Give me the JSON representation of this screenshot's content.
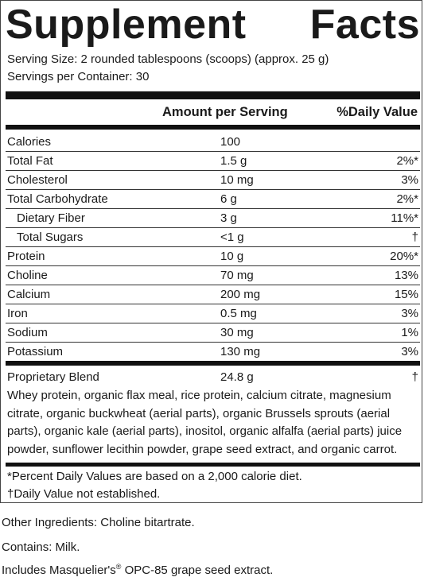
{
  "panel": {
    "title_word1": "Supplement",
    "title_word2": "Facts",
    "serving_size": "Serving Size: 2 rounded tablespoons (scoops) (approx. 25 g)",
    "servings_per_container": "Servings per Container: 30",
    "header_amount": "Amount per Serving",
    "header_dv": "%Daily Value",
    "nutrients": [
      {
        "name": "Calories",
        "amount": "100",
        "dv": "",
        "indent": false
      },
      {
        "name": "Total Fat",
        "amount": "1.5 g",
        "dv": "2%*",
        "indent": false
      },
      {
        "name": "Cholesterol",
        "amount": "10 mg",
        "dv": "3%",
        "indent": false
      },
      {
        "name": "Total Carbohydrate",
        "amount": "6 g",
        "dv": "2%*",
        "indent": false
      },
      {
        "name": "Dietary Fiber",
        "amount": "3 g",
        "dv": "11%*",
        "indent": true
      },
      {
        "name": "Total Sugars",
        "amount": "<1 g",
        "dv": "†",
        "indent": true
      },
      {
        "name": "Protein",
        "amount": "10 g",
        "dv": "20%*",
        "indent": false
      },
      {
        "name": "Choline",
        "amount": "70 mg",
        "dv": "13%",
        "indent": false
      },
      {
        "name": "Calcium",
        "amount": "200 mg",
        "dv": "15%",
        "indent": false
      },
      {
        "name": "Iron",
        "amount": "0.5 mg",
        "dv": "3%",
        "indent": false
      },
      {
        "name": "Sodium",
        "amount": "30 mg",
        "dv": "1%",
        "indent": false
      },
      {
        "name": "Potassium",
        "amount": "130 mg",
        "dv": "3%",
        "indent": false
      }
    ],
    "blend": {
      "name": "Proprietary Blend",
      "amount": "24.8 g",
      "dv": "†",
      "description": "Whey protein, organic flax meal, rice protein, calcium citrate, magnesium citrate, organic buckwheat (aerial parts), organic Brussels sprouts (aerial parts), organic kale (aerial parts), inositol, organic alfalfa (aerial parts) juice powder, sunflower lecithin powder, grape seed extract, and organic carrot."
    },
    "footnote_percent": "*Percent Daily Values are based on a 2,000 calorie diet.",
    "footnote_dagger": "†Daily Value not established."
  },
  "other_ingredients": "Other Ingredients: Choline bitartrate.",
  "contains": "Contains: Milk.",
  "includes_prefix": "Includes Masquelier's",
  "includes_reg": "®",
  "includes_suffix": " OPC-85 grape seed extract."
}
